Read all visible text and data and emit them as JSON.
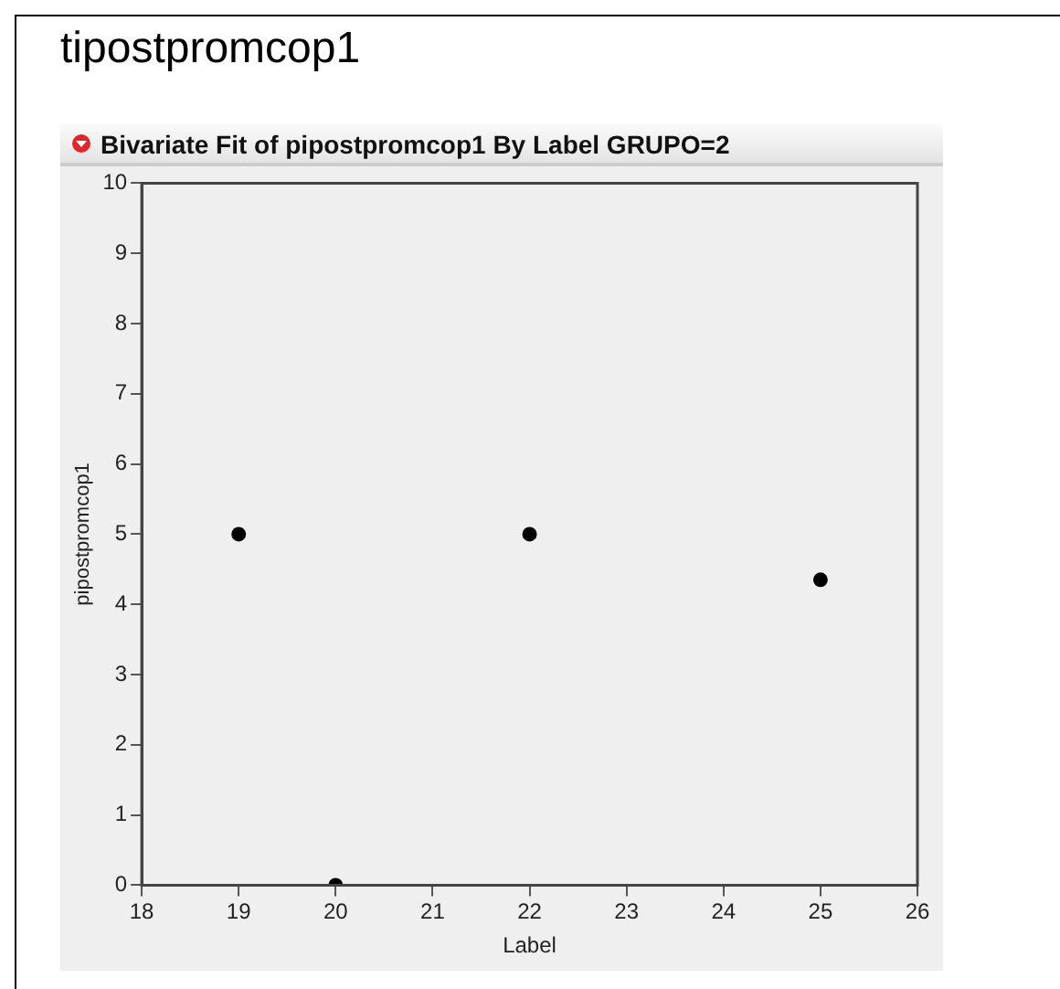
{
  "chart_data": {
    "type": "scatter",
    "title": "tipostpromcop1",
    "subtitle": "Bivariate Fit of pipostpromcop1 By Label GRUPO=2",
    "xlabel": "Label",
    "ylabel": "pipostpromcop1",
    "x": [
      19,
      20,
      22,
      25
    ],
    "values": [
      5,
      0,
      5,
      4.35
    ],
    "color": "#000000",
    "marker": "circle",
    "xlim": [
      18,
      26
    ],
    "xticks": [
      18,
      19,
      20,
      21,
      22,
      23,
      24,
      25,
      26
    ],
    "ylim": [
      0,
      10
    ],
    "yticks": [
      0,
      1,
      2,
      3,
      4,
      5,
      6,
      7,
      8,
      9,
      10
    ],
    "grid": false,
    "legend": false
  }
}
